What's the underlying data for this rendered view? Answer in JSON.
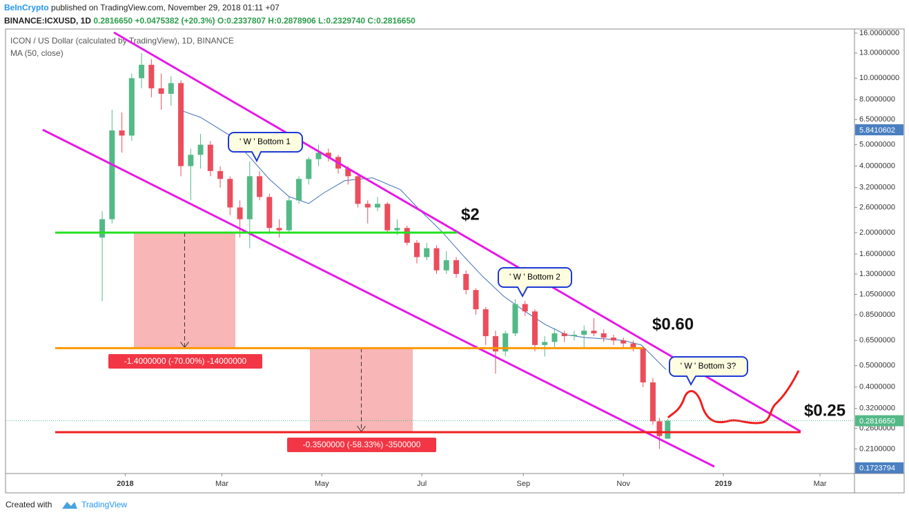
{
  "header": {
    "publisher": "BeInCrypto",
    "published": "published on TradingView.com, November 29, 2018 01:11 +07",
    "symbol": "BINANCE:ICXUSD, 1D",
    "price": "0.2816650",
    "change": "+0.0475382 (+20.3%)",
    "ohlc": [
      "O:0.2337807",
      "H:0.2878906",
      "L:0.2329740",
      "C:0.2816650"
    ]
  },
  "footer": {
    "created": "Created with",
    "brand": "TradingView"
  },
  "chart_data": {
    "type": "candlestick",
    "title": "ICON / US Dollar (calculated by TradingView), 1D, BINANCE",
    "indicator": "MA (50, close)",
    "log_scale": true,
    "up_color": "#53b987",
    "down_color": "#eb4d5c",
    "x": [
      -14,
      -8,
      -2,
      4,
      10,
      16,
      22,
      28,
      34,
      40,
      46,
      52,
      58,
      64,
      70,
      76,
      82,
      88,
      94,
      100,
      106,
      112,
      118,
      124,
      130,
      136,
      142,
      148,
      154,
      160,
      166,
      172,
      178,
      184,
      190,
      196,
      202,
      208,
      214,
      220,
      226,
      232,
      238,
      244,
      250,
      256,
      262,
      268,
      274,
      280,
      286,
      292,
      298,
      304,
      310,
      316,
      322,
      326,
      331
    ],
    "open": [
      1.9,
      2.3,
      5.8,
      5.5,
      10.0,
      11.5,
      9.0,
      8.5,
      9.5,
      4.0,
      4.5,
      5.0,
      3.8,
      3.5,
      2.6,
      2.3,
      3.6,
      2.9,
      2.1,
      2.05,
      2.8,
      3.5,
      4.3,
      4.6,
      4.4,
      3.9,
      3.6,
      2.7,
      2.6,
      2.7,
      2.05,
      2.1,
      1.8,
      1.55,
      1.7,
      1.35,
      1.5,
      1.3,
      1.1,
      0.9,
      0.68,
      0.58,
      0.7,
      0.95,
      0.88,
      0.62,
      0.64,
      0.7,
      0.68,
      0.69,
      0.72,
      0.7,
      0.67,
      0.65,
      0.63,
      0.6,
      0.42,
      0.28,
      0.2337807
    ],
    "high": [
      2.5,
      7.2,
      7.0,
      10.5,
      13.0,
      12.2,
      10.5,
      10.2,
      9.8,
      4.8,
      5.6,
      5.2,
      4.0,
      3.6,
      2.8,
      4.2,
      3.8,
      3.0,
      2.3,
      2.9,
      3.6,
      4.4,
      5.0,
      4.8,
      4.5,
      4.0,
      3.7,
      2.8,
      2.9,
      2.75,
      2.3,
      2.15,
      1.85,
      1.8,
      1.75,
      1.65,
      1.55,
      1.35,
      1.12,
      0.92,
      0.72,
      0.72,
      1.0,
      0.98,
      0.9,
      0.68,
      0.74,
      0.72,
      0.72,
      0.76,
      0.82,
      0.73,
      0.69,
      0.67,
      0.65,
      0.61,
      0.44,
      0.29,
      0.2878906
    ],
    "low": [
      0.98,
      2.2,
      4.6,
      5.2,
      9.0,
      8.2,
      7.2,
      7.5,
      3.6,
      2.8,
      3.9,
      3.6,
      3.2,
      2.4,
      1.9,
      1.7,
      2.8,
      2.0,
      1.9,
      2.0,
      2.7,
      3.3,
      4.0,
      4.2,
      3.7,
      3.3,
      2.6,
      2.2,
      2.5,
      2.0,
      1.95,
      1.75,
      1.45,
      1.5,
      1.3,
      1.3,
      1.25,
      1.05,
      0.85,
      0.62,
      0.46,
      0.55,
      0.68,
      0.84,
      0.58,
      0.55,
      0.6,
      0.64,
      0.65,
      0.6,
      0.68,
      0.64,
      0.62,
      0.6,
      0.58,
      0.4,
      0.27,
      0.21,
      0.232974
    ],
    "close": [
      2.3,
      5.8,
      5.5,
      10.0,
      11.5,
      9.0,
      8.5,
      9.5,
      4.0,
      4.5,
      5.0,
      3.8,
      3.5,
      2.6,
      2.3,
      3.6,
      2.9,
      2.1,
      2.05,
      2.8,
      3.5,
      4.3,
      4.6,
      4.4,
      3.9,
      3.6,
      2.7,
      2.6,
      2.7,
      2.05,
      2.1,
      1.8,
      1.55,
      1.7,
      1.35,
      1.5,
      1.3,
      1.1,
      0.9,
      0.68,
      0.58,
      0.7,
      0.95,
      0.88,
      0.62,
      0.64,
      0.7,
      0.68,
      0.69,
      0.72,
      0.7,
      0.67,
      0.65,
      0.63,
      0.6,
      0.42,
      0.28,
      0.24,
      0.281665
    ],
    "ma": {
      "color": "#3f6fb5",
      "x": [
        34,
        46,
        63,
        75,
        88,
        100,
        112,
        121,
        134,
        151,
        168,
        180,
        193,
        206,
        218,
        231,
        243,
        256,
        269,
        281,
        294,
        304,
        315,
        330
      ],
      "values": [
        7.15,
        6.65,
        5.56,
        4.48,
        3.49,
        2.91,
        2.71,
        3.02,
        3.44,
        3.54,
        3.13,
        2.52,
        2.03,
        1.58,
        1.27,
        1.03,
        0.89,
        0.77,
        0.69,
        0.67,
        0.66,
        0.65,
        0.62,
        0.48
      ]
    },
    "xlim": [
      -73,
      445
    ],
    "xticks": [
      {
        "value": 0,
        "label": "2018"
      },
      {
        "value": 59,
        "label": "Mar"
      },
      {
        "value": 120,
        "label": "May"
      },
      {
        "value": 181,
        "label": "Jul"
      },
      {
        "value": 243,
        "label": "Sep"
      },
      {
        "value": 304,
        "label": "Nov"
      },
      {
        "value": 365,
        "label": "2019"
      },
      {
        "value": 424,
        "label": "Mar"
      }
    ],
    "ylim": [
      0.1625,
      16.7
    ],
    "yticks": [
      {
        "value": 16,
        "label": "16.0000000"
      },
      {
        "value": 13,
        "label": "13.0000000"
      },
      {
        "value": 10,
        "label": "10.0000000"
      },
      {
        "value": 8,
        "label": "8.0000000"
      },
      {
        "value": 6.5,
        "label": "6.5000000"
      },
      {
        "value": 5,
        "label": "5.0000000"
      },
      {
        "value": 4,
        "label": "4.0000000"
      },
      {
        "value": 3.2,
        "label": "3.2000000"
      },
      {
        "value": 2.6,
        "label": "2.6000000"
      },
      {
        "value": 2,
        "label": "2.0000000"
      },
      {
        "value": 1.6,
        "label": "1.6000000"
      },
      {
        "value": 1.3,
        "label": "1.3000000"
      },
      {
        "value": 1.05,
        "label": "1.0500000"
      },
      {
        "value": 0.85,
        "label": "0.8500000"
      },
      {
        "value": 0.65,
        "label": "0.6500000"
      },
      {
        "value": 0.5,
        "label": "0.5000000"
      },
      {
        "value": 0.4,
        "label": "0.4000000"
      },
      {
        "value": 0.32,
        "label": "0.3200000"
      },
      {
        "value": 0.26,
        "label": "0.2600000"
      },
      {
        "value": 0.21,
        "label": "0.2100000"
      }
    ],
    "markers": [
      {
        "value": 5.8410602,
        "color": "#4a7fc1"
      },
      {
        "value": 0.281665,
        "label": "0.2816650",
        "color": "#53b987"
      },
      {
        "value": 0.1723794,
        "color": "#4a7fc1"
      }
    ],
    "levels": [
      {
        "value": 2,
        "label": "$2",
        "color": "#22e01e"
      },
      {
        "value": 0.6,
        "label": "$0.60",
        "color": "#ff9800"
      },
      {
        "value": 0.25,
        "label": "$0.25",
        "color": "#f21d1d"
      }
    ],
    "measures": [
      "-1.4000000 (-70.00%) -14000000",
      "-0.3500000 (-58.33%) -3500000"
    ],
    "annotations": [
      "' W ' Bottom 1",
      "' W ' Bottom 2",
      "' W ' Bottom 3?"
    ]
  }
}
